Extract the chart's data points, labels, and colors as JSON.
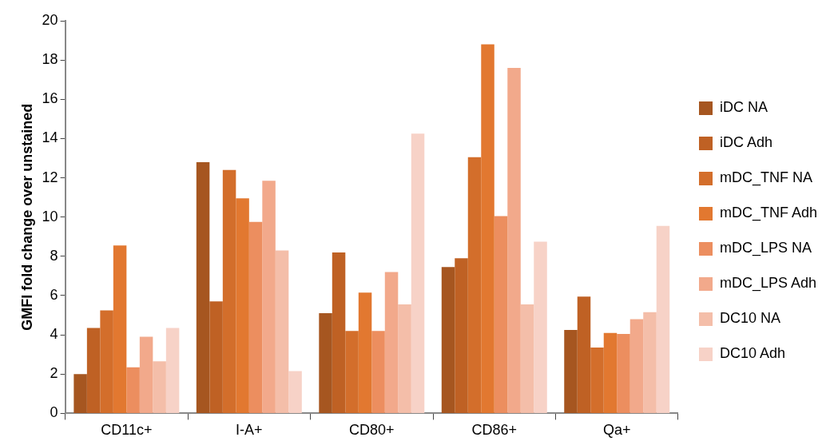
{
  "chart_data": {
    "type": "bar",
    "ylabel": "GMFI fold change over unstained",
    "categories": [
      "CD11c+",
      "I-A+",
      "CD80+",
      "CD86+",
      "Qa+"
    ],
    "series": [
      {
        "name": "iDC NA",
        "color": "#a65620",
        "values": [
          2.0,
          12.8,
          5.1,
          7.45,
          4.25
        ]
      },
      {
        "name": "iDC Adh",
        "color": "#bf6124",
        "values": [
          4.35,
          5.7,
          8.2,
          7.9,
          5.95
        ]
      },
      {
        "name": "mDC_TNF NA",
        "color": "#d36e2b",
        "values": [
          5.25,
          12.4,
          4.2,
          13.05,
          3.35
        ]
      },
      {
        "name": "mDC_TNF Adh",
        "color": "#e27830",
        "values": [
          8.55,
          10.95,
          6.15,
          18.8,
          4.1
        ]
      },
      {
        "name": "mDC_LPS NA",
        "color": "#ec8e5f",
        "values": [
          2.35,
          9.75,
          4.2,
          10.05,
          4.05
        ]
      },
      {
        "name": "mDC_LPS Adh",
        "color": "#f2a98b",
        "values": [
          3.9,
          11.85,
          7.2,
          17.6,
          4.8
        ]
      },
      {
        "name": "DC10 NA",
        "color": "#f4bea9",
        "values": [
          2.65,
          8.3,
          5.55,
          5.55,
          5.15
        ]
      },
      {
        "name": "DC10 Adh",
        "color": "#f7d2c7",
        "values": [
          4.35,
          2.15,
          14.25,
          8.75,
          9.55
        ]
      }
    ],
    "ylim": [
      0,
      20
    ],
    "yticks": [
      0,
      2,
      4,
      6,
      8,
      10,
      12,
      14,
      16,
      18,
      20
    ],
    "grid": false,
    "legend": "right"
  }
}
